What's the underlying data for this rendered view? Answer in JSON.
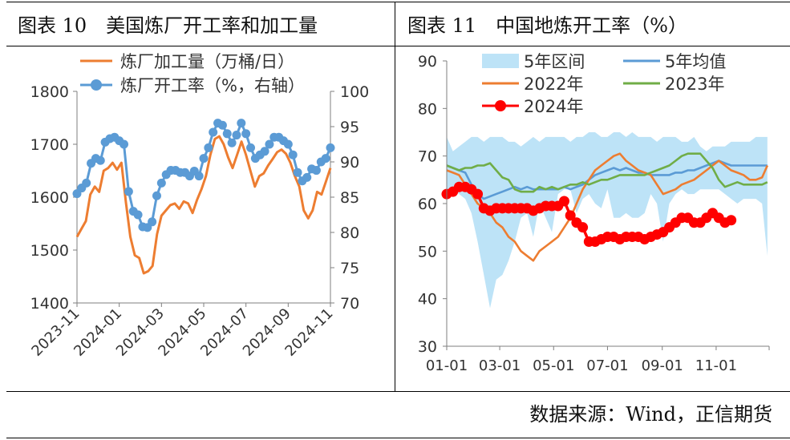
{
  "panels": {
    "left": {
      "title": "图表 10　美国炼厂开工率和加工量"
    },
    "right": {
      "title": "图表 11　中国地炼开工率（%）"
    }
  },
  "footer": {
    "source": "数据来源：Wind，正信期货"
  },
  "colors": {
    "orange": "#ED7D31",
    "blue": "#5B9BD5",
    "green": "#70AD47",
    "red": "#FF0000",
    "band": "#BDE3F7",
    "axis": "#7F7F7F"
  },
  "chart_data": [
    {
      "type": "line",
      "title": "",
      "x_tick_labels": [
        "2023-11",
        "2024-01",
        "2024-03",
        "2024-05",
        "2024-07",
        "2024-09",
        "2024-11"
      ],
      "y_left": {
        "lim": [
          1400,
          1800
        ],
        "ticks": [
          1400,
          1500,
          1600,
          1700,
          1800
        ]
      },
      "y_right": {
        "lim": [
          70,
          100
        ],
        "ticks": [
          70,
          75,
          80,
          85,
          90,
          95,
          100
        ]
      },
      "legend_position": "top",
      "series": [
        {
          "name": "炼厂加工量（万桶/日）",
          "axis": "left",
          "color": "#ED7D31",
          "marker": "none",
          "values": [
            1525,
            1540,
            1555,
            1605,
            1620,
            1610,
            1650,
            1655,
            1665,
            1652,
            1665,
            1590,
            1525,
            1490,
            1485,
            1456,
            1460,
            1470,
            1530,
            1565,
            1575,
            1585,
            1588,
            1578,
            1592,
            1588,
            1570,
            1595,
            1615,
            1640,
            1680,
            1710,
            1715,
            1700,
            1675,
            1655,
            1680,
            1705,
            1680,
            1650,
            1620,
            1640,
            1645,
            1660,
            1672,
            1685,
            1690,
            1682,
            1665,
            1640,
            1620,
            1575,
            1560,
            1575,
            1610,
            1605,
            1630,
            1655
          ]
        },
        {
          "name": "炼厂开工率（%，右轴）",
          "axis": "right",
          "color": "#5B9BD5",
          "marker": "circle",
          "values": [
            85.5,
            86.3,
            87.0,
            89.8,
            90.5,
            90.2,
            92.8,
            93.3,
            93.5,
            93.0,
            92.5,
            85.8,
            83.0,
            82.5,
            80.8,
            80.7,
            81.5,
            85.2,
            87.0,
            88.2,
            88.8,
            88.8,
            88.5,
            88.5,
            88.0,
            88.7,
            88.0,
            90.5,
            92.0,
            94.2,
            95.5,
            95.2,
            94.0,
            92.7,
            93.8,
            95.5,
            94.0,
            92.0,
            90.5,
            91.0,
            91.5,
            92.5,
            93.5,
            93.5,
            93.0,
            92.5,
            91.0,
            88.5,
            87.3,
            87.8,
            89.0,
            88.8,
            90.0,
            90.5,
            92.0
          ]
        }
      ]
    },
    {
      "type": "line",
      "title": "",
      "x_tick_labels": [
        "01-01",
        "03-01",
        "05-01",
        "07-01",
        "09-01",
        "11-01"
      ],
      "x_range_days": [
        1,
        366
      ],
      "x_tick_days": [
        1,
        61,
        122,
        183,
        245,
        306
      ],
      "ylim": [
        30,
        90
      ],
      "yticks": [
        30,
        40,
        50,
        60,
        70,
        80,
        90
      ],
      "legend_position": "top",
      "band": {
        "name": "5年区间",
        "color": "#BDE3F7",
        "x_days": [
          1,
          8,
          15,
          22,
          29,
          36,
          43,
          50,
          57,
          64,
          71,
          78,
          85,
          92,
          99,
          106,
          113,
          120,
          127,
          134,
          141,
          148,
          155,
          162,
          169,
          176,
          183,
          190,
          197,
          204,
          211,
          218,
          225,
          232,
          239,
          246,
          253,
          260,
          267,
          274,
          281,
          288,
          295,
          302,
          309,
          316,
          323,
          330,
          337,
          344,
          351,
          358,
          364
        ],
        "upper": [
          74,
          71,
          72,
          73,
          74,
          74,
          73,
          74,
          74,
          74,
          73,
          73,
          72,
          73,
          74,
          73,
          74,
          74,
          74,
          74,
          73,
          74,
          74,
          75,
          75,
          74,
          74,
          75,
          75,
          74,
          75,
          74,
          74,
          74,
          73,
          74,
          74,
          74,
          73,
          73,
          74,
          72,
          71,
          72,
          72,
          72,
          73,
          73,
          73,
          73,
          74,
          74,
          74
        ],
        "lower": [
          63,
          63,
          62,
          61,
          58,
          52,
          45,
          38,
          44,
          45,
          48,
          52,
          57,
          58,
          53,
          60,
          57,
          54,
          62,
          63,
          63,
          58,
          61,
          62,
          60,
          59,
          63,
          57,
          57,
          58,
          57,
          57,
          58,
          62,
          60,
          52,
          60,
          62,
          63,
          62,
          62,
          63,
          63,
          63,
          63,
          62,
          61,
          60,
          61,
          61,
          61,
          60,
          49
        ]
      },
      "series": [
        {
          "name": "5年均值",
          "color": "#5B9BD5",
          "x_days": [
            1,
            8,
            15,
            22,
            29,
            36,
            43,
            50,
            57,
            64,
            71,
            78,
            85,
            92,
            99,
            106,
            113,
            120,
            127,
            134,
            141,
            148,
            155,
            162,
            169,
            176,
            183,
            190,
            197,
            204,
            211,
            218,
            225,
            232,
            239,
            246,
            253,
            260,
            267,
            274,
            281,
            288,
            295,
            302,
            309,
            316,
            323,
            330,
            337,
            344,
            351,
            358,
            364
          ],
          "values": [
            68,
            67.5,
            67,
            66.5,
            64,
            62,
            61,
            61.5,
            62,
            62.5,
            63,
            63.5,
            63,
            63.5,
            63,
            63,
            63,
            63,
            63,
            63.5,
            63,
            63.5,
            64,
            65,
            66,
            66.5,
            67,
            67.5,
            67,
            67.5,
            67,
            66.5,
            66.5,
            66,
            66,
            66,
            66,
            66.5,
            66.5,
            67,
            67,
            67.5,
            68,
            68.5,
            69,
            68.5,
            68,
            68,
            68,
            68,
            68,
            68,
            68
          ]
        },
        {
          "name": "2022年",
          "color": "#ED7D31",
          "x_days": [
            1,
            8,
            15,
            22,
            29,
            36,
            43,
            50,
            57,
            64,
            71,
            78,
            85,
            92,
            99,
            106,
            113,
            120,
            127,
            134,
            141,
            148,
            155,
            162,
            169,
            176,
            183,
            190,
            197,
            204,
            211,
            218,
            225,
            232,
            239,
            246,
            253,
            260,
            267,
            274,
            281,
            288,
            295,
            302,
            309,
            316,
            323,
            330,
            337,
            344,
            351,
            358,
            364
          ],
          "values": [
            67,
            66.5,
            66,
            64,
            62,
            60,
            59,
            58,
            56,
            55,
            53,
            52,
            50,
            49,
            48,
            50,
            51,
            52,
            53,
            55,
            57,
            60,
            63,
            65,
            67,
            68,
            69,
            70,
            70.5,
            69,
            68,
            67,
            66.5,
            66,
            64,
            62,
            62.5,
            63,
            64,
            64.5,
            65,
            66,
            67,
            68,
            69,
            68,
            67,
            66.5,
            66,
            65,
            65,
            65.5,
            68
          ]
        },
        {
          "name": "2023年",
          "color": "#70AD47",
          "x_days": [
            1,
            8,
            15,
            22,
            29,
            36,
            43,
            50,
            57,
            64,
            71,
            78,
            85,
            92,
            99,
            106,
            113,
            120,
            127,
            134,
            141,
            148,
            155,
            162,
            169,
            176,
            183,
            190,
            197,
            204,
            211,
            218,
            225,
            232,
            239,
            246,
            253,
            260,
            267,
            274,
            281,
            288,
            295,
            302,
            309,
            316,
            323,
            330,
            337,
            344,
            351,
            358,
            364
          ],
          "values": [
            68,
            67.5,
            67,
            67.5,
            67.5,
            68,
            68,
            68.5,
            67,
            65.5,
            65,
            63,
            62.5,
            62.5,
            62.5,
            63.5,
            63,
            63.5,
            63,
            63.5,
            64,
            64,
            64.5,
            64,
            64.5,
            65,
            65,
            65.5,
            66,
            66,
            66,
            66,
            66,
            66.5,
            67,
            67.5,
            68,
            69,
            70,
            70.5,
            70.5,
            70.5,
            69,
            67.5,
            65,
            63.5,
            64,
            64.5,
            64,
            64,
            64,
            64,
            64.5
          ]
        },
        {
          "name": "2024年",
          "color": "#FF0000",
          "marker": "circle",
          "x_days": [
            1,
            8,
            15,
            22,
            29,
            36,
            43,
            50,
            57,
            64,
            71,
            78,
            85,
            92,
            99,
            106,
            113,
            120,
            127,
            134,
            141,
            148,
            155,
            162,
            169,
            176,
            183,
            190,
            197,
            204,
            211,
            218,
            225,
            232,
            239,
            246,
            253,
            260,
            267,
            274,
            281,
            288,
            295,
            302,
            309,
            316,
            323
          ],
          "values": [
            62,
            62.5,
            63.5,
            63.5,
            63,
            62,
            59,
            58.5,
            59,
            59,
            59,
            59,
            59,
            59,
            58.5,
            59,
            59.5,
            59.5,
            59.5,
            60.5,
            57.5,
            56,
            55,
            52,
            52,
            52.5,
            53,
            53,
            52.5,
            53,
            53,
            53,
            52.5,
            53,
            53.5,
            54,
            55,
            56,
            57,
            57,
            56,
            56,
            57,
            58,
            57,
            56,
            56.5
          ]
        }
      ]
    }
  ]
}
